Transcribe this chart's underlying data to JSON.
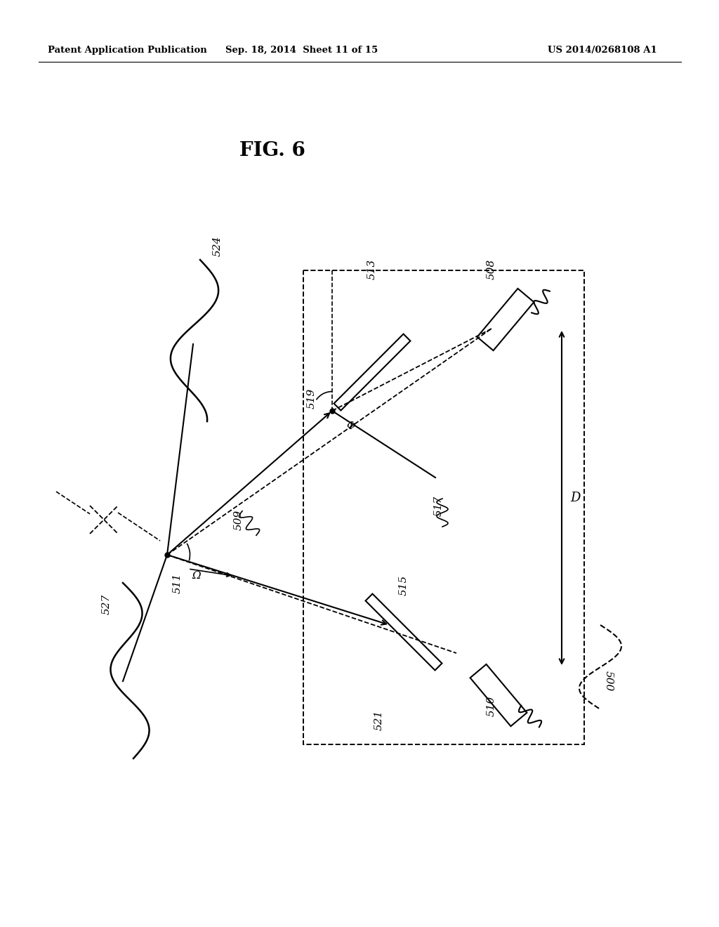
{
  "header_left": "Patent Application Publication",
  "header_center": "Sep. 18, 2014  Sheet 11 of 15",
  "header_right": "US 2014/0268108 A1",
  "fig_label": "FIG. 6",
  "bg_color": "#ffffff",
  "lc": "#000000"
}
